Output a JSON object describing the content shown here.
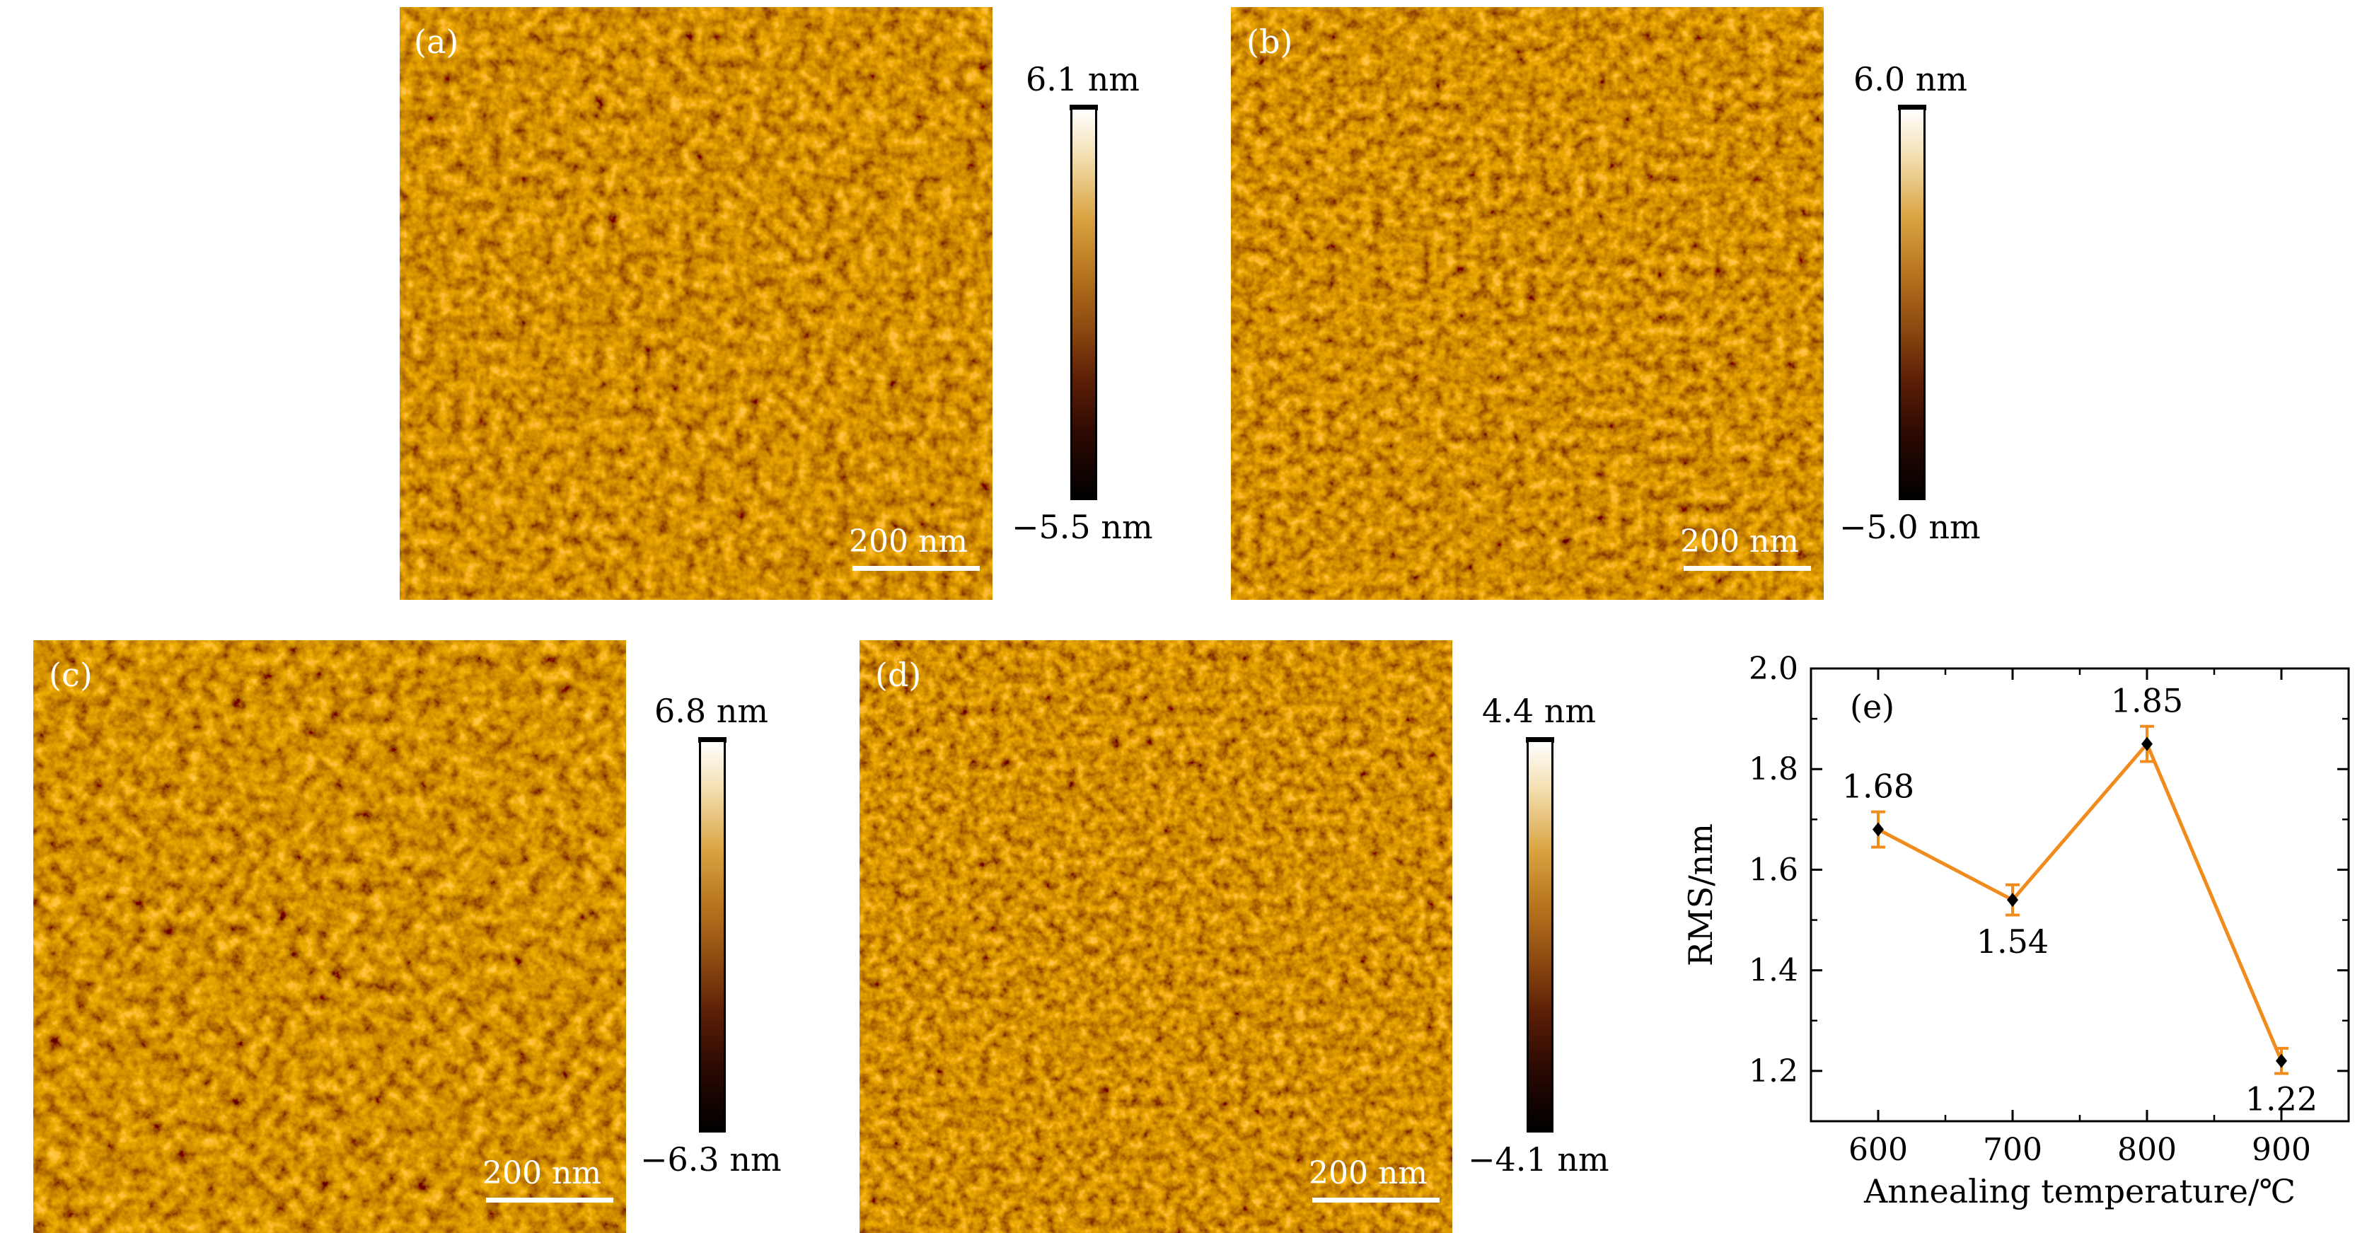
{
  "panels": [
    {
      "label": "(a)",
      "scale_bar": "200 nm",
      "cbar_max": "6.1 nm",
      "cbar_min": "−5.5 nm"
    },
    {
      "label": "(b)",
      "scale_bar": "200 nm",
      "cbar_max": "6.0 nm",
      "cbar_min": "−5.0 nm"
    },
    {
      "label": "(c)",
      "scale_bar": "200 nm",
      "cbar_max": "6.8 nm",
      "cbar_min": "−6.3 nm"
    },
    {
      "label": "(d)",
      "scale_bar": "200 nm",
      "cbar_max": "4.4 nm",
      "cbar_min": "−4.1 nm"
    }
  ],
  "chart_data": {
    "type": "line",
    "panel_label": "(e)",
    "xlabel": "Annealing temperature/℃",
    "ylabel": "RMS/nm",
    "x": [
      600,
      700,
      800,
      900
    ],
    "y": [
      1.68,
      1.54,
      1.85,
      1.22
    ],
    "error": [
      0.035,
      0.03,
      0.035,
      0.025
    ],
    "data_labels": [
      "1.68",
      "1.54",
      "1.85",
      "1.22"
    ],
    "xticks": [
      "600",
      "700",
      "800",
      "900"
    ],
    "yticks": [
      "1.2",
      "1.4",
      "1.6",
      "1.8",
      "2.0"
    ],
    "xlim": [
      550,
      950
    ],
    "ylim": [
      1.1,
      2.0
    ],
    "line_color": "#f08c1e",
    "marker_color": "#000000",
    "grid": false
  }
}
